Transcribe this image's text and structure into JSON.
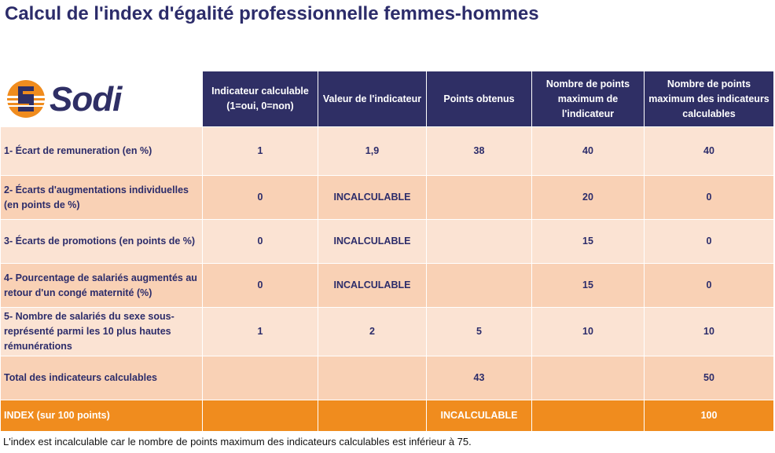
{
  "title": "Calcul de l'index d'égalité professionnelle femmes-hommes",
  "logo": {
    "text": "Sodi",
    "icon": "sodi-logo-icon",
    "colors": {
      "orange": "#f08c1e",
      "navy": "#2f2f65"
    }
  },
  "headers": [
    "Indicateur calculable (1=oui, 0=non)",
    "Valeur de l'indicateur",
    "Points obtenus",
    "Nombre de points maximum de l'indicateur",
    "Nombre de points maximum des indicateurs calculables"
  ],
  "rows": [
    {
      "label": "1- Écart de remuneration (en %)",
      "calculable": "1",
      "valeur": "1,9",
      "points": "38",
      "max_indicateur": "40",
      "max_calculables": "40"
    },
    {
      "label": "2- Écarts d'augmentations individuelles (en points de %)",
      "calculable": "0",
      "valeur": "INCALCULABLE",
      "points": "",
      "max_indicateur": "20",
      "max_calculables": "0"
    },
    {
      "label": "3- Écarts de promotions (en points de %)",
      "calculable": "0",
      "valeur": "INCALCULABLE",
      "points": "",
      "max_indicateur": "15",
      "max_calculables": "0"
    },
    {
      "label": "4- Pourcentage de salariés augmentés au retour d'un congé maternité (%)",
      "calculable": "0",
      "valeur": "INCALCULABLE",
      "points": "",
      "max_indicateur": "15",
      "max_calculables": "0"
    },
    {
      "label": "5- Nombre de salariés du sexe sous-représenté parmi les 10 plus hautes rémunérations",
      "calculable": "1",
      "valeur": "2",
      "points": "5",
      "max_indicateur": "10",
      "max_calculables": "10"
    }
  ],
  "total": {
    "label": "Total des indicateurs calculables",
    "calculable": "",
    "valeur": "",
    "points": "43",
    "max_indicateur": "",
    "max_calculables": "50"
  },
  "index": {
    "label": "INDEX (sur 100 points)",
    "calculable": "",
    "valeur": "",
    "points": "INCALCULABLE",
    "max_indicateur": "",
    "max_calculables": "100"
  },
  "footnote": "L'index est incalculable car le nombre de points maximum des indicateurs calculables est inférieur à 75.",
  "colors": {
    "header": "#2f2f65",
    "row_light": "#fbe3d3",
    "row_mid": "#f9d1b5",
    "index": "#f08c1e",
    "title": "#2c2c6a"
  }
}
